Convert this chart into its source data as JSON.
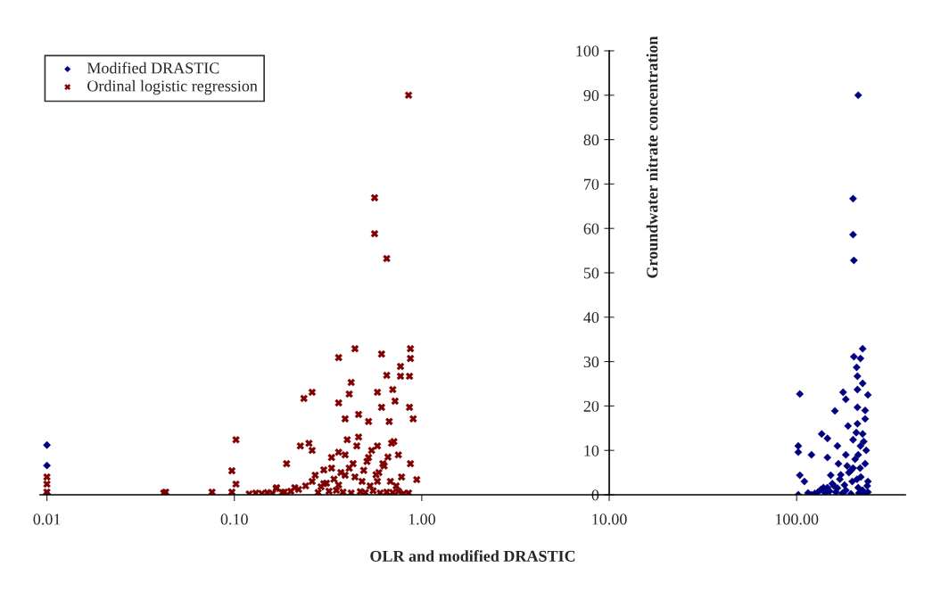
{
  "chart_data": {
    "type": "scatter",
    "xlabel": "OLR and modified DRASTIC",
    "ylabel": "Groundwater nitrate concentration",
    "log": "x",
    "xlim": [
      0.0092,
      380
    ],
    "xticks": [
      {
        "value": 0.01,
        "label": "0.01"
      },
      {
        "value": 0.1,
        "label": "0.10"
      },
      {
        "value": 1,
        "label": "1.00"
      },
      {
        "value": 10,
        "label": "10.00"
      },
      {
        "value": 100,
        "label": "100.00"
      }
    ],
    "ylim": [
      0,
      100
    ],
    "yticks": [
      0,
      10,
      20,
      30,
      40,
      50,
      60,
      70,
      80,
      90,
      100
    ],
    "grid": false,
    "legend": "top left",
    "series": [
      {
        "name": "Modified DRASTIC",
        "color": "#000080",
        "marker": "diamond",
        "x": [
          0.01,
          0.01,
          0.01,
          213,
          200,
          200,
          202,
          225,
          202,
          219,
          209,
          211,
          225,
          211,
          104,
          177,
          240,
          183,
          160,
          211,
          232,
          188,
          136,
          146,
          102,
          102,
          120,
          165,
          219,
          146,
          104,
          110,
          102,
          120,
          139,
          152,
          167,
          183,
          200,
          225,
          232,
          240,
          162,
          183,
          213,
          240,
          200,
          213,
          211,
          232,
          130,
          146,
          155,
          170,
          190,
          205,
          220,
          235,
          175,
          195,
          215,
          230,
          142,
          158,
          172,
          186,
          198,
          208,
          218,
          228,
          238,
          125,
          135,
          150,
          165,
          180,
          195,
          210,
          225,
          115
        ],
        "values": [
          11.2,
          6.6,
          0.2,
          90.0,
          66.7,
          58.6,
          52.8,
          32.9,
          31.1,
          30.7,
          28.7,
          26.7,
          25.1,
          23.7,
          22.7,
          23.1,
          22.5,
          21.5,
          18.9,
          19.7,
          17.1,
          15.5,
          13.7,
          12.7,
          11.0,
          9.6,
          9.0,
          11.0,
          11.0,
          8.4,
          4.4,
          3.0,
          0.0,
          0.0,
          1.6,
          4.4,
          7.0,
          9.0,
          12.4,
          13.7,
          7.0,
          3.0,
          0.6,
          1.0,
          1.6,
          0.6,
          6.0,
          9.0,
          16.0,
          19.0,
          0.6,
          1.6,
          2.5,
          3.5,
          5.0,
          8.0,
          4.0,
          10.0,
          0.3,
          0.2,
          0.4,
          0.2,
          0.4,
          2.0,
          4.5,
          6.5,
          3.0,
          14.0,
          6.0,
          12.0,
          2.0,
          0.3,
          1.2,
          0.8,
          1.5,
          2.2,
          5.5,
          3.5,
          1.0,
          0.4
        ]
      },
      {
        "name": "Ordinal logistic regression",
        "color": "#800000",
        "marker": "cross",
        "x": [
          0.85,
          0.56,
          0.56,
          0.65,
          0.44,
          0.36,
          0.61,
          0.87,
          0.87,
          0.77,
          0.65,
          0.77,
          0.86,
          0.42,
          0.26,
          0.235,
          0.41,
          0.58,
          0.7,
          0.36,
          0.72,
          0.86,
          0.61,
          0.39,
          0.46,
          0.9,
          0.52,
          0.67,
          0.225,
          0.25,
          0.26,
          0.19,
          0.4,
          0.45,
          0.36,
          0.58,
          0.69,
          0.75,
          0.87,
          0.94,
          0.3,
          0.27,
          0.168,
          0.52,
          0.62,
          0.43,
          0.33,
          0.39,
          0.48,
          0.58,
          0.01,
          0.01,
          0.01,
          0.043,
          0.042,
          0.076,
          0.102,
          0.097,
          0.102,
          0.097,
          0.13,
          0.167,
          0.21,
          0.185,
          0.14,
          0.15,
          0.2,
          0.22,
          0.28,
          0.32,
          0.35,
          0.38,
          0.42,
          0.47,
          0.5,
          0.55,
          0.6,
          0.65,
          0.7,
          0.75,
          0.8,
          0.85,
          0.3,
          0.34,
          0.37,
          0.41,
          0.44,
          0.49,
          0.53,
          0.57,
          0.63,
          0.68,
          0.73,
          0.24,
          0.26,
          0.29,
          0.31,
          0.33,
          0.36,
          0.39,
          0.46,
          0.51,
          0.54,
          0.59,
          0.66,
          0.71,
          0.78,
          0.12,
          0.16,
          0.18
        ],
        "values": [
          90.0,
          66.9,
          58.8,
          53.2,
          32.9,
          30.9,
          31.7,
          32.9,
          30.7,
          28.9,
          26.9,
          26.7,
          26.7,
          25.3,
          23.1,
          21.7,
          22.7,
          23.1,
          23.7,
          20.7,
          21.1,
          19.7,
          19.7,
          17.1,
          18.1,
          17.1,
          16.5,
          16.5,
          11.0,
          11.6,
          10.0,
          7.0,
          12.4,
          11.0,
          9.6,
          11.0,
          11.6,
          9.0,
          7.0,
          3.4,
          5.6,
          4.4,
          1.6,
          8.4,
          7.0,
          7.0,
          8.4,
          4.4,
          3.0,
          3.0,
          4.0,
          2.4,
          0.6,
          0.6,
          0.4,
          0.6,
          12.4,
          5.4,
          2.4,
          0.6,
          0.4,
          1.4,
          1.6,
          0.6,
          0.3,
          0.5,
          0.8,
          1.2,
          0.5,
          0.8,
          1.0,
          0.6,
          0.4,
          0.7,
          0.5,
          0.9,
          0.4,
          0.6,
          0.5,
          0.8,
          0.3,
          0.4,
          2.5,
          3.5,
          5.0,
          6.0,
          4.0,
          5.5,
          2.0,
          4.5,
          6.5,
          3.0,
          2.0,
          2.0,
          3.0,
          1.8,
          2.6,
          6.0,
          2.2,
          9.0,
          13.0,
          7.5,
          10.0,
          5.0,
          8.5,
          12.0,
          4.0,
          0.2,
          0.3,
          0.5
        ]
      }
    ]
  }
}
